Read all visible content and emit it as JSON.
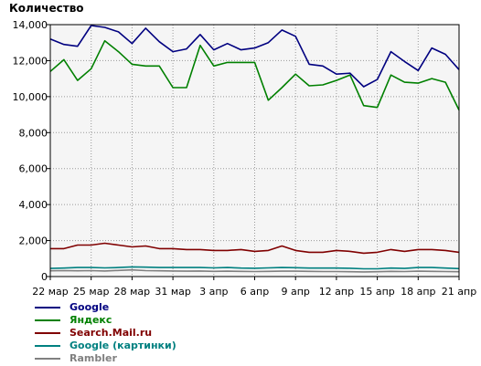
{
  "chart_data": {
    "type": "line",
    "title": "",
    "ylabel": "Количество",
    "xlabel": "",
    "ylim": [
      0,
      14000
    ],
    "yticks": [
      0,
      2000,
      4000,
      6000,
      8000,
      10000,
      12000,
      14000
    ],
    "ytick_labels": [
      "0",
      "2,000",
      "4,000",
      "6,000",
      "8,000",
      "10,000",
      "12,000",
      "14,000"
    ],
    "grid": true,
    "legend": "bottom-left",
    "x_tick_labels": [
      "22 мар",
      "25 мар",
      "28 мар",
      "31 мар",
      "3 апр",
      "6 апр",
      "9 апр",
      "12 апр",
      "15 апр",
      "18 апр",
      "21 апр"
    ],
    "x_tick_every": 3,
    "series": [
      {
        "name": "Google",
        "color": "#000080",
        "values": [
          13200,
          12900,
          12800,
          13950,
          13850,
          13600,
          12950,
          13800,
          13050,
          12500,
          12650,
          13450,
          12600,
          12950,
          12600,
          12700,
          13000,
          13700,
          13350,
          11800,
          11700,
          11250,
          11300,
          10550,
          10950,
          12500,
          11950,
          11450,
          12700,
          12350,
          11500
        ]
      },
      {
        "name": "Яндекс",
        "color": "#008000",
        "values": [
          11400,
          12050,
          10900,
          11550,
          13100,
          12500,
          11800,
          11700,
          11700,
          10500,
          10500,
          12850,
          11700,
          11900,
          11900,
          11900,
          9800,
          10500,
          11250,
          10600,
          10650,
          10900,
          11200,
          9500,
          9400,
          11200,
          10800,
          10750,
          11000,
          10800,
          9250
        ]
      },
      {
        "name": "Search.Mail.ru",
        "color": "#800000",
        "values": [
          1550,
          1550,
          1750,
          1750,
          1850,
          1750,
          1650,
          1700,
          1550,
          1550,
          1500,
          1500,
          1450,
          1450,
          1500,
          1400,
          1450,
          1700,
          1450,
          1350,
          1350,
          1450,
          1400,
          1300,
          1350,
          1500,
          1400,
          1500,
          1500,
          1450,
          1350
        ]
      },
      {
        "name": "Google (картинки)",
        "color": "#008080",
        "values": [
          450,
          470,
          500,
          500,
          480,
          500,
          540,
          520,
          500,
          500,
          500,
          500,
          480,
          500,
          470,
          460,
          480,
          500,
          490,
          470,
          470,
          470,
          460,
          430,
          430,
          470,
          450,
          500,
          500,
          470,
          440
        ]
      },
      {
        "name": "Rambler",
        "color": "#808080",
        "values": [
          320,
          330,
          320,
          330,
          310,
          340,
          370,
          330,
          320,
          310,
          300,
          310,
          290,
          300,
          290,
          280,
          290,
          300,
          300,
          290,
          280,
          280,
          270,
          260,
          270,
          290,
          280,
          300,
          290,
          280,
          270
        ]
      }
    ]
  }
}
